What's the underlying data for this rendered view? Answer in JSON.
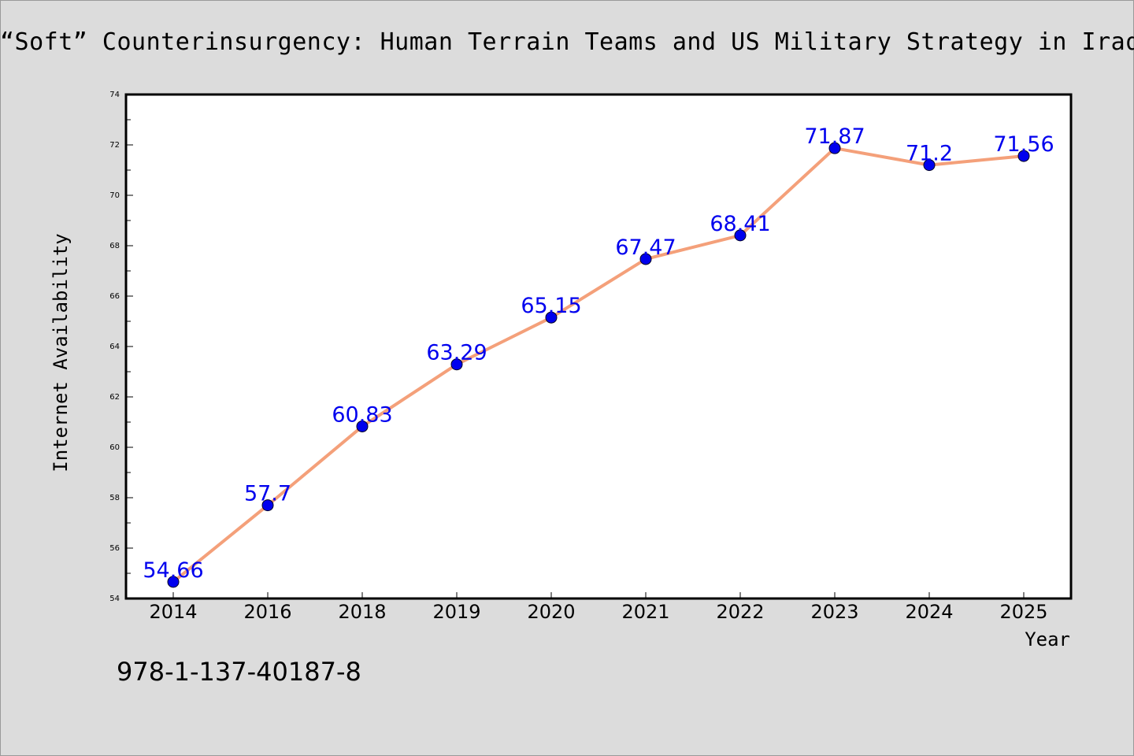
{
  "page_title": "“Soft” Counterinsurgency: Human Terrain Teams and US Military Strategy in Iraq and Afghanistan",
  "footer_code": "978-1-137-40187-8",
  "chart_data": {
    "type": "line",
    "title": "",
    "xlabel": "Year",
    "ylabel": "Internet Availability",
    "categories": [
      "2014",
      "2016",
      "2018",
      "2019",
      "2020",
      "2021",
      "2022",
      "2023",
      "2024",
      "2025"
    ],
    "series": [
      {
        "name": "",
        "values": [
          54.66,
          57.7,
          60.83,
          63.29,
          65.15,
          67.47,
          68.41,
          71.87,
          71.2,
          71.56
        ],
        "data_labels": [
          "54.66",
          "57.7",
          "60.83",
          "63.29",
          "65.15",
          "67.47",
          "68.41",
          "71.87",
          "71.2",
          "71.56"
        ],
        "line_color": "#f4a07a",
        "marker_color": "#0000ee",
        "label_color": "#0000ee"
      }
    ],
    "ylim": [
      54,
      74
    ],
    "yticks": [
      54,
      56,
      58,
      60,
      62,
      64,
      66,
      68,
      70,
      72,
      74
    ],
    "grid": false,
    "legend": "none"
  }
}
